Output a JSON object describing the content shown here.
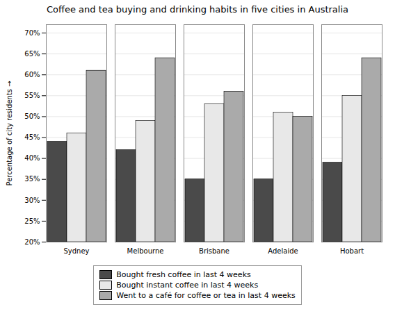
{
  "chart_data": {
    "type": "bar",
    "title": "Coffee and tea buying and drinking habits in five cities in Australia",
    "categories": [
      "Sydney",
      "Melbourne",
      "Brisbane",
      "Adelaide",
      "Hobart"
    ],
    "series": [
      {
        "name": "Bought fresh coffee in last 4 weeks",
        "color": "#4a4a4a",
        "values": [
          44,
          42,
          35,
          35,
          39
        ]
      },
      {
        "name": "Bought instant coffee in last 4 weeks",
        "color": "#e8e8e8",
        "values": [
          46,
          49,
          53,
          51,
          55
        ]
      },
      {
        "name": "Went to a café for coffee or tea in last 4 weeks",
        "color": "#aaaaaa",
        "values": [
          61,
          64,
          56,
          50,
          64
        ]
      }
    ],
    "ylabel": "Percentage of city residents",
    "ylim": [
      20,
      72
    ],
    "yticks": [
      {
        "value": 20,
        "label": "20%"
      },
      {
        "value": 25,
        "label": "25%"
      },
      {
        "value": 30,
        "label": "30%"
      },
      {
        "value": 35,
        "label": "35%"
      },
      {
        "value": 40,
        "label": "40%"
      },
      {
        "value": 45,
        "label": "45%"
      },
      {
        "value": 50,
        "label": "50%"
      },
      {
        "value": 55,
        "label": "55%"
      },
      {
        "value": 60,
        "label": "60%"
      },
      {
        "value": 65,
        "label": "65%"
      },
      {
        "value": 70,
        "label": "70%"
      }
    ],
    "grid": true,
    "legend": "bottom"
  }
}
